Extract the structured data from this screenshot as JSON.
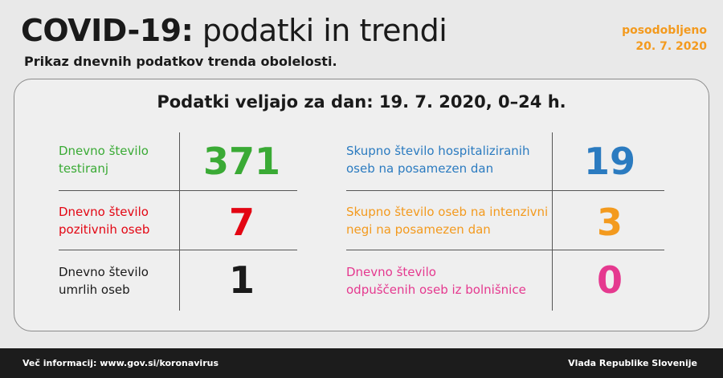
{
  "header": {
    "title_bold": "COVID-19:",
    "title_light": "podatki in trendi",
    "subtitle": "Prikaz dnevnih podatkov trenda obolelosti.",
    "updated_label": "posodobljeno",
    "updated_date": "20. 7. 2020"
  },
  "card": {
    "heading": "Podatki veljajo za dan: 19. 7. 2020, 0–24 h.",
    "left": [
      {
        "label": "Dnevno število\ntestiranj",
        "value": "371",
        "color": "#3aaa35"
      },
      {
        "label": "Dnevno število\npozitivnih oseb",
        "value": "7",
        "color": "#e30613"
      },
      {
        "label": "Dnevno število\numrlih oseb",
        "value": "1",
        "color": "#1a1a1a"
      }
    ],
    "right": [
      {
        "label": "Skupno število hospitaliziranih\noseb na posamezen dan",
        "value": "19",
        "color": "#2b7bc0"
      },
      {
        "label": "Skupno število oseb na intenzivni\nnegi na posamezen dan",
        "value": "3",
        "color": "#f39a1e"
      },
      {
        "label": "Dnevno število\nodpuščenih oseb iz bolnišnice",
        "value": "0",
        "color": "#e5398f"
      }
    ]
  },
  "footer": {
    "info": "Več informacij: www.gov.si/koronavirus",
    "org": "Vlada Republike Slovenije"
  }
}
